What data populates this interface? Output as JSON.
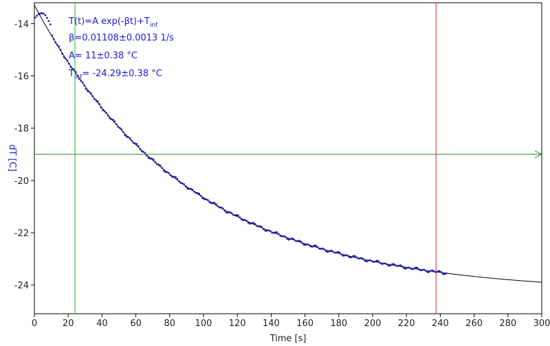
{
  "chart_data": {
    "type": "scatter",
    "xlabel": "Time [s]",
    "ylabel": "dT [C]",
    "xlim": [
      0,
      300
    ],
    "ylim": [
      -25.1,
      -13.2
    ],
    "x_ticks": [
      0,
      20,
      40,
      60,
      80,
      100,
      120,
      140,
      160,
      180,
      200,
      220,
      240,
      260,
      280,
      300
    ],
    "y_ticks": [
      -24,
      -22,
      -20,
      -18,
      -16,
      -14
    ],
    "grid": false,
    "fit": {
      "formula_prefix": "T(t)=A exp(-βt)+T",
      "formula_sub": "inf",
      "beta_text": "β=0.01108±0.0013 1/s",
      "a_text": "A= 11±0.38 °C",
      "tinf_prefix": "T",
      "tinf_sub": "inf",
      "tinf_rest": "= -24.29±0.38 °C",
      "A": 11.0,
      "beta": 0.01108,
      "T_inf": -24.29
    },
    "data_range": {
      "x_start": 0.5,
      "x_end": 244,
      "step": 1.0
    },
    "initial_points": [
      {
        "x": 0.5,
        "y": -13.77
      },
      {
        "x": 1.5,
        "y": -13.7
      },
      {
        "x": 2.5,
        "y": -13.64
      },
      {
        "x": 3.5,
        "y": -13.61
      },
      {
        "x": 4.5,
        "y": -13.6
      },
      {
        "x": 5.5,
        "y": -13.62
      },
      {
        "x": 6.5,
        "y": -13.68
      },
      {
        "x": 7.5,
        "y": -13.78
      },
      {
        "x": 8.5,
        "y": -13.9
      },
      {
        "x": 9.5,
        "y": -14.03
      }
    ],
    "cursors": {
      "vertical_green_x": 24,
      "vertical_red_x": 237.5,
      "horizontal_green_y": -19.0
    },
    "colors": {
      "data": "#1a1aa8",
      "fit": "#000000",
      "axis_text": "#1a1adc",
      "green_cursor": "#22bb22",
      "red_cursor": "#dd2222",
      "h_cursor": "#228822"
    }
  }
}
